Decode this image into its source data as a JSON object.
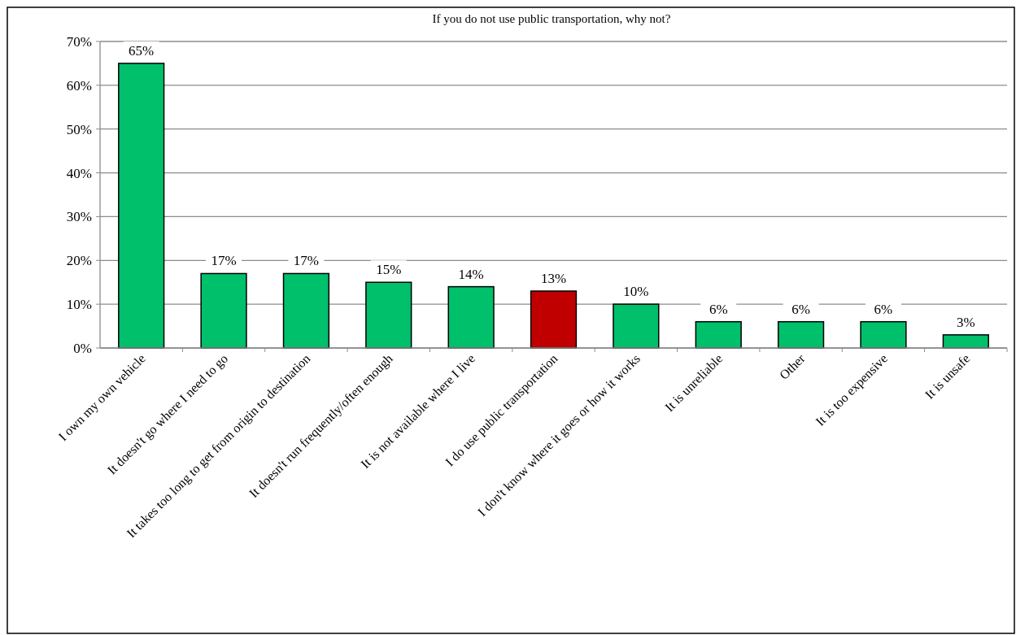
{
  "chart_data": {
    "type": "bar",
    "title": "If you do not use public transportation, why not?",
    "categories": [
      "I own my own vehicle",
      "It doesn't go where I need to go",
      "It takes too long to get from origin to destination",
      "It doesn't run frequently/often enough",
      "It is not available where I live",
      "I do use public transportation",
      "I don't know where it goes or how it works",
      "It is unreliable",
      "Other",
      "It is too expensive",
      "It is unsafe"
    ],
    "values": [
      65,
      17,
      17,
      15,
      14,
      13,
      10,
      6,
      6,
      6,
      3
    ],
    "colors": [
      "#00c06b",
      "#00c06b",
      "#00c06b",
      "#00c06b",
      "#00c06b",
      "#c00000",
      "#00c06b",
      "#00c06b",
      "#00c06b",
      "#00c06b",
      "#00c06b"
    ],
    "ylim": [
      0,
      70
    ],
    "yticks": [
      {
        "value": 0,
        "label": "0%"
      },
      {
        "value": 10,
        "label": "10%"
      },
      {
        "value": 20,
        "label": "20%"
      },
      {
        "value": 30,
        "label": "30%"
      },
      {
        "value": 40,
        "label": "40%"
      },
      {
        "value": 50,
        "label": "50%"
      },
      {
        "value": 60,
        "label": "60%"
      },
      {
        "value": 70,
        "label": "70%"
      }
    ],
    "value_labels": [
      "65%",
      "17%",
      "17%",
      "15%",
      "14%",
      "13%",
      "10%",
      "6%",
      "6%",
      "6%",
      "3%"
    ],
    "grid": "y"
  }
}
